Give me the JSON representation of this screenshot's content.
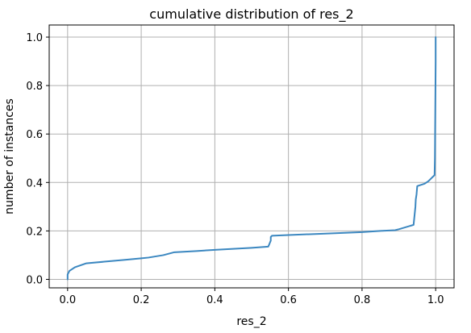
{
  "chart_data": {
    "type": "line",
    "title": "cumulative distribution of res_2",
    "xlabel": "res_2",
    "ylabel": "number of instances",
    "xlim": [
      -0.05,
      1.05
    ],
    "ylim": [
      -0.035,
      1.05
    ],
    "xticks": [
      "0.0",
      "0.2",
      "0.4",
      "0.6",
      "0.8",
      "1.0"
    ],
    "yticks": [
      "0.0",
      "0.2",
      "0.4",
      "0.6",
      "0.8",
      "1.0"
    ],
    "xtick_values": [
      0.0,
      0.2,
      0.4,
      0.6,
      0.8,
      1.0
    ],
    "ytick_values": [
      0.0,
      0.2,
      0.4,
      0.6,
      0.8,
      1.0
    ],
    "grid": true,
    "line_color": "#3b87c0",
    "series": [
      {
        "x": [
          0.0,
          0.0,
          0.005,
          0.02,
          0.05,
          0.1,
          0.15,
          0.2,
          0.22,
          0.26,
          0.29,
          0.35,
          0.4,
          0.45,
          0.5,
          0.545,
          0.548,
          0.552,
          0.552,
          0.555,
          0.6,
          0.7,
          0.8,
          0.85,
          0.89,
          0.9,
          0.94,
          0.943,
          0.945,
          0.946,
          0.948,
          0.95,
          0.96,
          0.97,
          0.98,
          0.99,
          0.997,
          0.998,
          0.999,
          1.0,
          1.0
        ],
        "y": [
          0.0,
          0.02,
          0.035,
          0.05,
          0.066,
          0.073,
          0.08,
          0.087,
          0.09,
          0.1,
          0.112,
          0.117,
          0.122,
          0.126,
          0.13,
          0.135,
          0.145,
          0.16,
          0.175,
          0.18,
          0.183,
          0.189,
          0.195,
          0.2,
          0.203,
          0.207,
          0.225,
          0.27,
          0.3,
          0.33,
          0.35,
          0.385,
          0.39,
          0.395,
          0.405,
          0.42,
          0.43,
          0.5,
          0.7,
          0.9,
          1.0
        ]
      }
    ]
  }
}
